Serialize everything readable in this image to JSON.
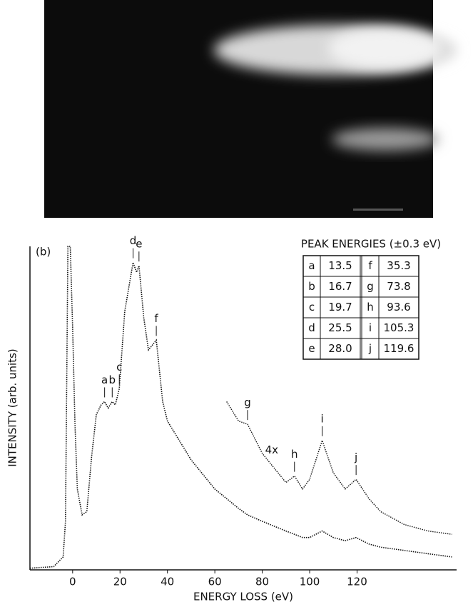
{
  "chart_data": {
    "type": "line",
    "panel_label": "(b)",
    "xlabel": "ENERGY LOSS (eV)",
    "ylabel": "INTENSITY (arb. units)",
    "xlim": [
      -18,
      162
    ],
    "xticks": [
      0,
      20,
      40,
      60,
      80,
      100,
      120
    ],
    "ylim": [
      0,
      100
    ],
    "x": [
      -18,
      -8,
      -4,
      -3,
      -2,
      -1,
      0,
      1,
      2,
      4,
      6,
      8,
      10,
      12,
      13.5,
      15,
      16.7,
      18,
      19.7,
      22,
      25.5,
      27,
      28,
      30,
      32,
      35.3,
      38,
      40,
      45,
      50,
      60,
      65,
      70,
      73.8,
      80,
      90,
      93.6,
      97,
      100,
      105.3,
      110,
      115,
      119.6,
      125,
      130,
      140,
      150,
      160
    ],
    "series": [
      {
        "color": "#111111",
        "values": [
          0.5,
          1,
          4,
          15,
          100,
          100,
          75,
          45,
          25,
          17,
          18,
          35,
          48,
          51,
          52,
          50,
          52,
          51,
          56,
          80,
          95,
          92,
          94,
          78,
          68,
          71,
          52,
          46,
          40,
          34,
          25,
          22,
          19,
          17,
          15,
          12,
          11,
          10,
          10,
          12,
          10,
          9,
          10,
          8,
          7,
          6,
          5,
          4
        ]
      },
      {
        "name": "4x",
        "color": "#111111",
        "values": [
          null,
          null,
          null,
          null,
          null,
          null,
          null,
          null,
          null,
          null,
          null,
          null,
          null,
          null,
          null,
          null,
          null,
          null,
          null,
          null,
          null,
          null,
          null,
          null,
          null,
          null,
          null,
          null,
          null,
          null,
          null,
          52,
          46,
          45,
          36,
          27,
          29,
          25,
          28,
          40,
          30,
          25,
          28,
          22,
          18,
          14,
          12,
          11
        ]
      }
    ],
    "peaks": {
      "title": "PEAK ENERGIES (±0.3 eV)",
      "labels": [
        "a",
        "b",
        "c",
        "d",
        "e",
        "f",
        "g",
        "h",
        "i",
        "j"
      ],
      "values": [
        13.5,
        16.7,
        19.7,
        25.5,
        28,
        35.3,
        73.8,
        93.6,
        105.3,
        119.6
      ],
      "value_labels": [
        "13.5",
        "16.7",
        "19.7",
        "25.5",
        "28.0",
        "35.3",
        "73.8",
        "93.6",
        "105.3",
        "119.6"
      ]
    }
  }
}
